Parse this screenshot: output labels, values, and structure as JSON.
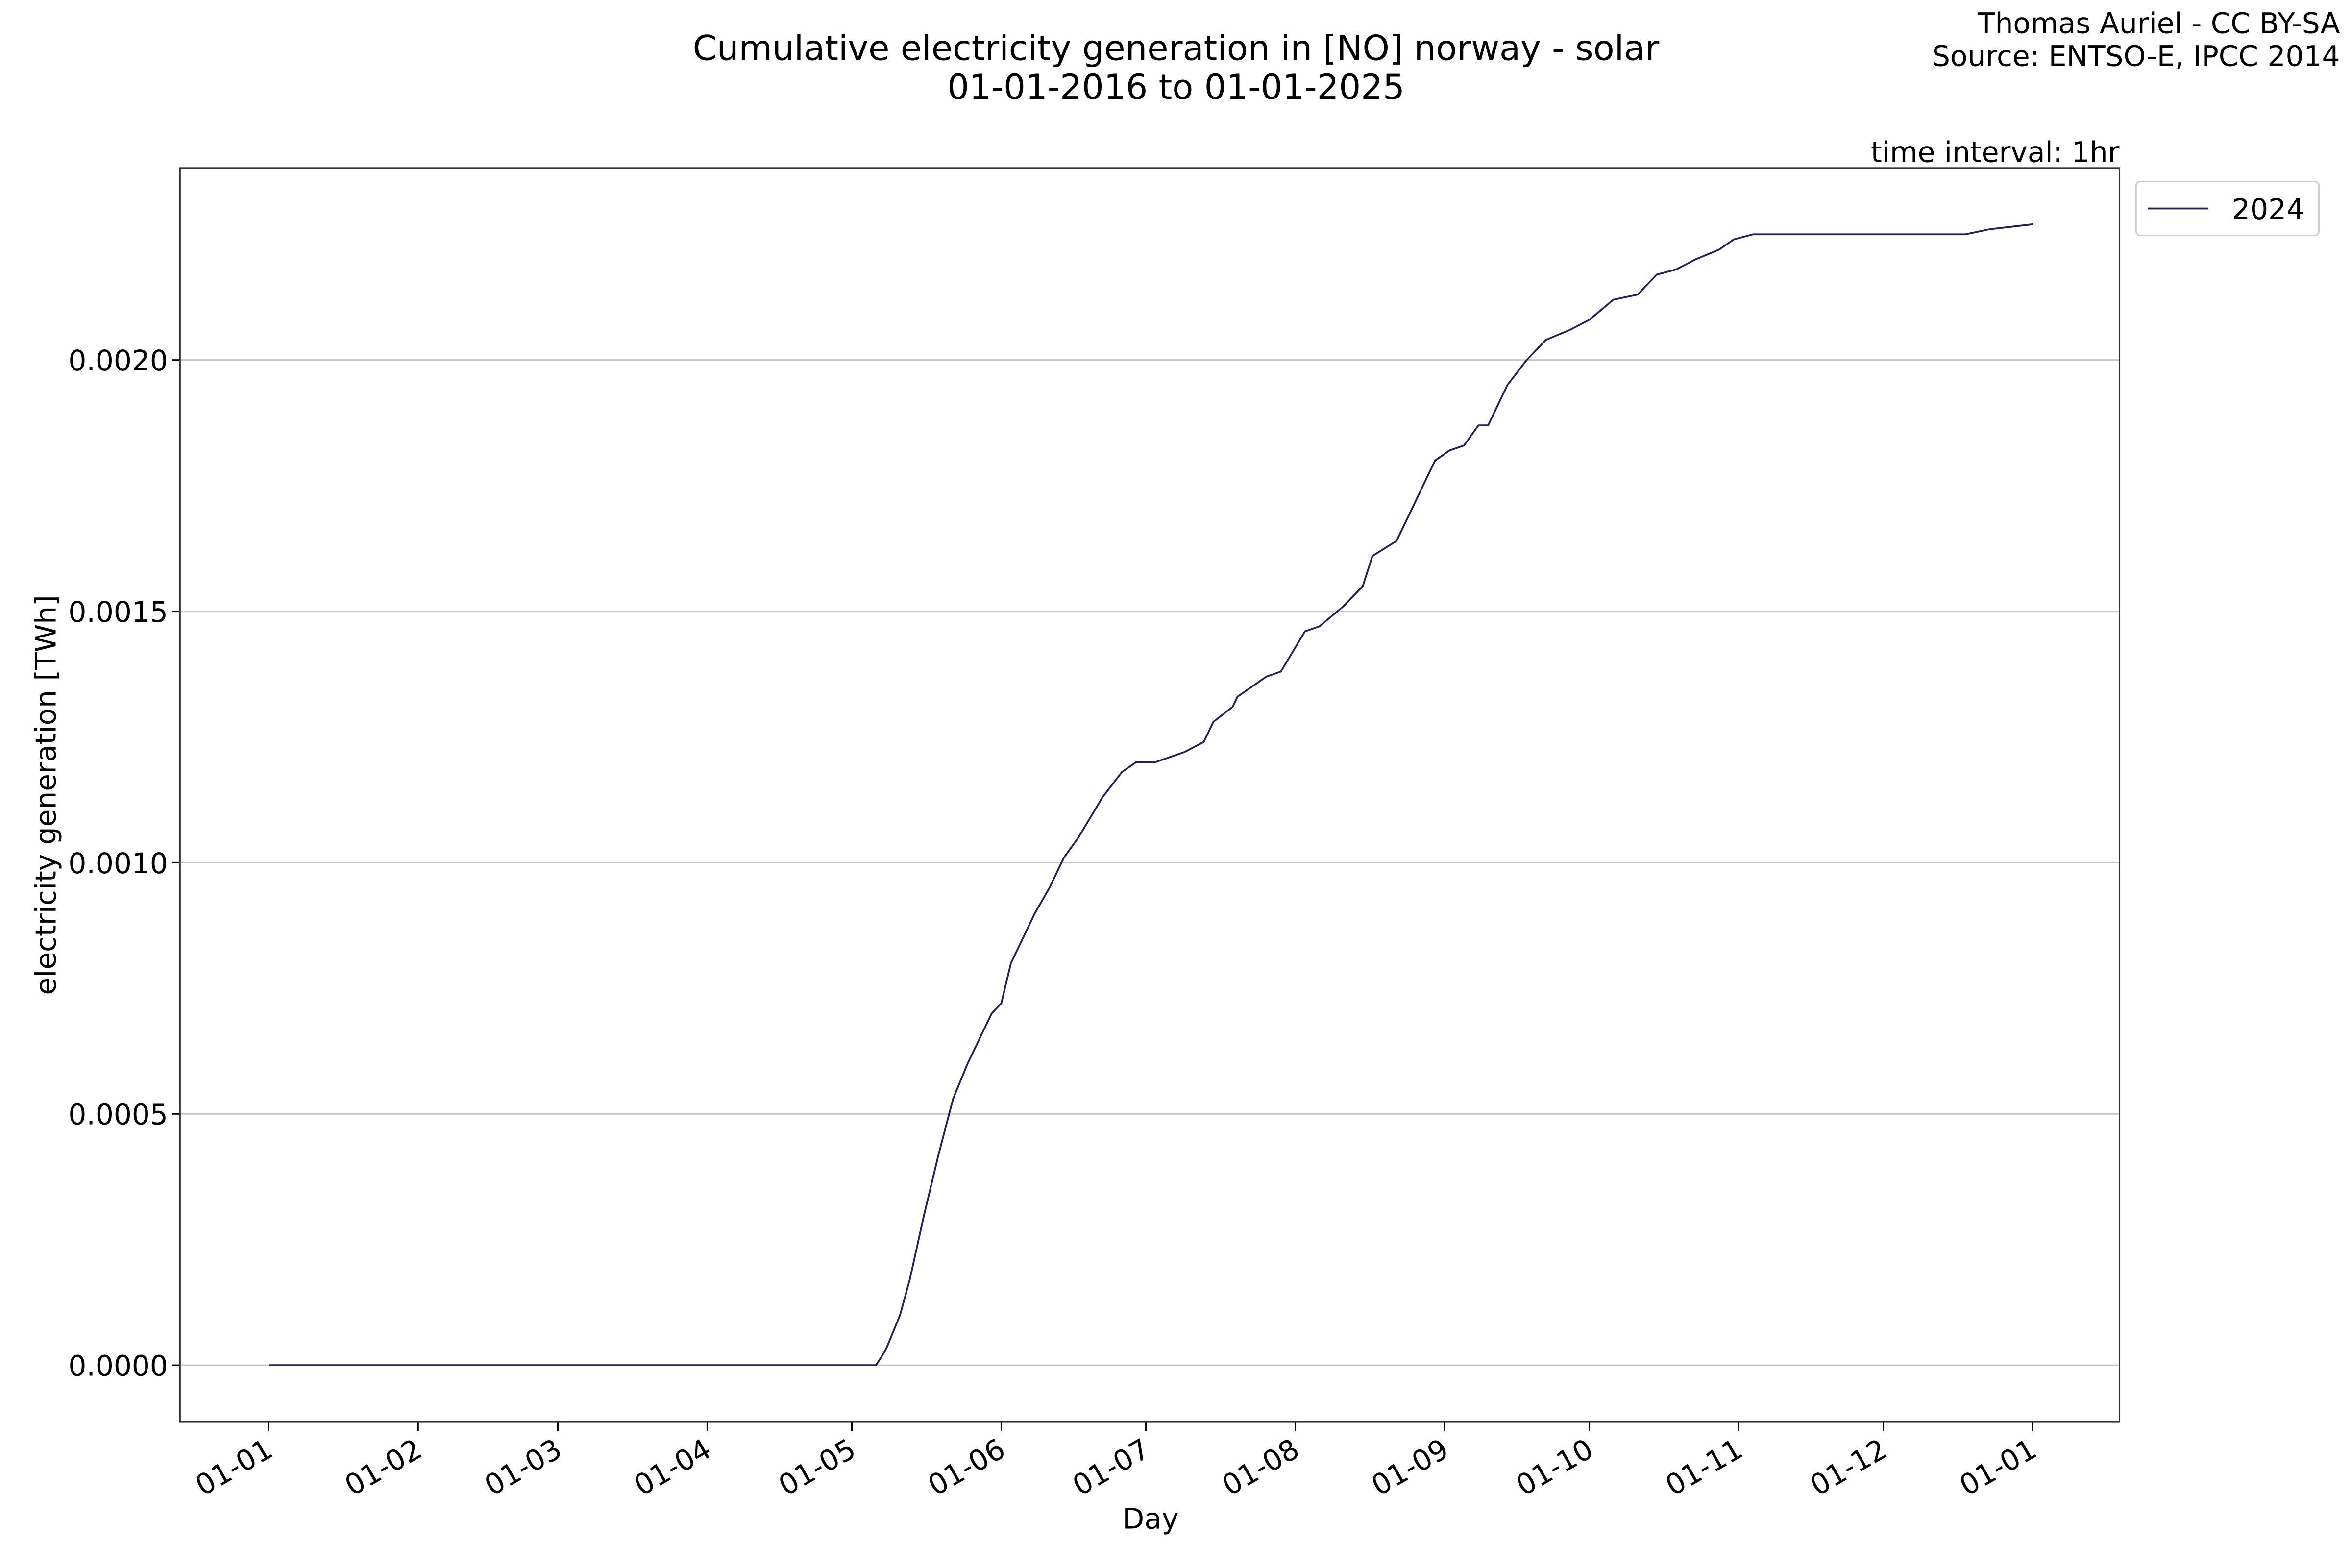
{
  "chart_data": {
    "type": "line",
    "title": "Cumulative electricity generation in [NO] norway - solar",
    "subtitle": "01-01-2016 to 01-01-2025",
    "credits": [
      "Thomas Auriel - CC BY-SA",
      "Source: ENTSO-E, IPCC 2014"
    ],
    "annotation": "time interval: 1hr",
    "x_label": "Day",
    "y_label": "electricity generation [TWh]",
    "x": [
      0,
      126,
      128,
      131,
      133,
      136,
      139,
      142,
      145,
      150,
      152,
      154,
      159,
      162,
      165,
      168,
      173,
      177,
      180,
      184,
      190,
      194,
      196,
      200,
      201,
      207,
      210,
      215,
      218,
      223,
      227,
      229,
      234,
      238,
      242,
      245,
      248,
      251,
      253,
      257,
      261,
      265,
      270,
      274,
      279,
      284,
      288,
      292,
      296,
      301,
      304,
      308,
      352,
      357,
      366
    ],
    "series": [
      {
        "name": "2024",
        "color": "#2b1d5c",
        "values": [
          0,
          0,
          3e-05,
          0.0001,
          0.00017,
          0.0003,
          0.00042,
          0.00053,
          0.0006,
          0.0007,
          0.00072,
          0.0008,
          0.0009,
          0.00095,
          0.00101,
          0.00105,
          0.00113,
          0.00118,
          0.0012,
          0.0012,
          0.00122,
          0.00124,
          0.00128,
          0.00131,
          0.00133,
          0.00137,
          0.00138,
          0.00146,
          0.00147,
          0.00151,
          0.00155,
          0.00161,
          0.00164,
          0.00172,
          0.0018,
          0.00182,
          0.00183,
          0.00187,
          0.00187,
          0.00195,
          0.002,
          0.00204,
          0.00206,
          0.00208,
          0.00212,
          0.00213,
          0.00217,
          0.00218,
          0.0022,
          0.00222,
          0.00224,
          0.00225,
          0.00225,
          0.00226,
          0.00227
        ]
      }
    ],
    "xlim": [
      -18.4,
      384
    ],
    "ylim": [
      -0.000113,
      0.002382
    ],
    "xticks": [
      {
        "value": 0,
        "label": "01-01"
      },
      {
        "value": 31,
        "label": "01-02"
      },
      {
        "value": 60,
        "label": "01-03"
      },
      {
        "value": 91,
        "label": "01-04"
      },
      {
        "value": 121,
        "label": "01-05"
      },
      {
        "value": 152,
        "label": "01-06"
      },
      {
        "value": 182,
        "label": "01-07"
      },
      {
        "value": 213,
        "label": "01-08"
      },
      {
        "value": 244,
        "label": "01-09"
      },
      {
        "value": 274,
        "label": "01-10"
      },
      {
        "value": 305,
        "label": "01-11"
      },
      {
        "value": 335,
        "label": "01-12"
      },
      {
        "value": 366,
        "label": "01-01"
      }
    ],
    "yticks": [
      {
        "value": 0,
        "label": "0.0000"
      },
      {
        "value": 0.0005,
        "label": "0.0005"
      },
      {
        "value": 0.001,
        "label": "0.0010"
      },
      {
        "value": 0.0015,
        "label": "0.0015"
      },
      {
        "value": 0.002,
        "label": "0.0020"
      }
    ],
    "grid": true,
    "legend": "outside-upper-right"
  }
}
